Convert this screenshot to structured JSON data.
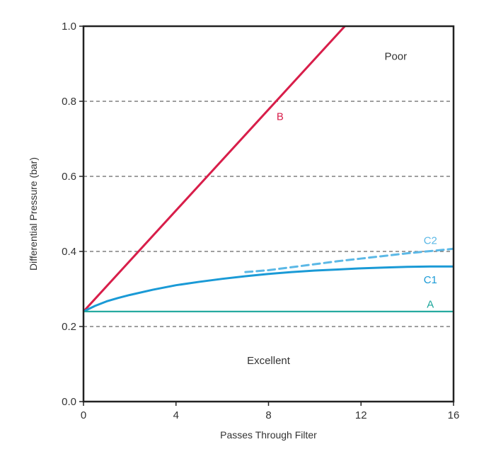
{
  "chart_data": {
    "type": "line",
    "title": "",
    "xlabel": "Passes Through Filter",
    "ylabel": "Differential Pressure (bar)",
    "xlim": [
      0,
      16
    ],
    "ylim": [
      0,
      1.0
    ],
    "x_ticks": [
      0,
      4,
      8,
      12,
      16
    ],
    "x_tick_labels": [
      "0",
      "4",
      "8",
      "12",
      "16"
    ],
    "y_ticks": [
      0,
      0.2,
      0.4,
      0.6,
      0.8,
      1.0
    ],
    "y_tick_labels": [
      "0.0",
      "0.2",
      "0.4",
      "0.6",
      "0.8",
      "1.0"
    ],
    "grid": {
      "horizontal_dashed": [
        0.2,
        0.4,
        0.6,
        0.8
      ]
    },
    "series": [
      {
        "name": "B",
        "color": "#d81e4a",
        "style": "solid",
        "x": [
          0,
          11.3
        ],
        "y": [
          0.24,
          1.0
        ]
      },
      {
        "name": "C2",
        "color": "#5bb8e6",
        "style": "dashed",
        "x": [
          7,
          8,
          9,
          10,
          11,
          12,
          13,
          14,
          15,
          16
        ],
        "y": [
          0.345,
          0.35,
          0.358,
          0.366,
          0.374,
          0.381,
          0.388,
          0.395,
          0.401,
          0.407
        ]
      },
      {
        "name": "C1",
        "color": "#1a9ad6",
        "style": "solid",
        "x": [
          0,
          0.5,
          1,
          1.5,
          2,
          3,
          4,
          5,
          6,
          7,
          8,
          9,
          10,
          11,
          12,
          13,
          14,
          15,
          16
        ],
        "y": [
          0.24,
          0.255,
          0.267,
          0.276,
          0.284,
          0.298,
          0.31,
          0.319,
          0.327,
          0.334,
          0.34,
          0.345,
          0.349,
          0.352,
          0.355,
          0.357,
          0.359,
          0.36,
          0.36
        ]
      },
      {
        "name": "A",
        "color": "#1aa59a",
        "style": "solid",
        "x": [
          0,
          16
        ],
        "y": [
          0.24,
          0.24
        ]
      }
    ],
    "annotations": [
      {
        "text": "B",
        "x": 8.5,
        "y": 0.75,
        "color": "#d81e4a"
      },
      {
        "text": "C2",
        "x": 15,
        "y": 0.42,
        "color": "#5bb8e6"
      },
      {
        "text": "C1",
        "x": 15,
        "y": 0.315,
        "color": "#1a9ad6"
      },
      {
        "text": "A",
        "x": 15,
        "y": 0.25,
        "color": "#1aa59a"
      },
      {
        "text": "Poor",
        "x": 13.5,
        "y": 0.91,
        "color": "#333333"
      },
      {
        "text": "Excellent",
        "x": 8,
        "y": 0.1,
        "color": "#333333"
      }
    ]
  }
}
